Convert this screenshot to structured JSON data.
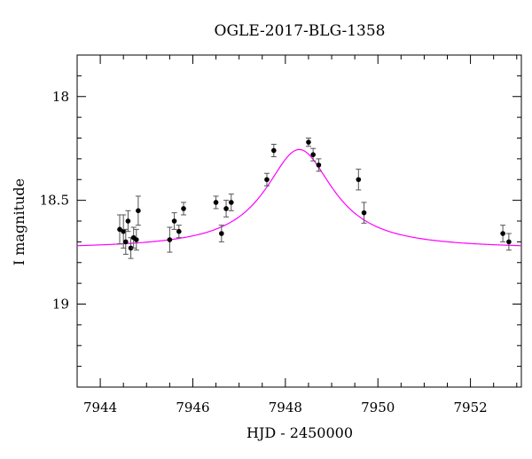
{
  "chart_data": {
    "type": "scatter",
    "title": "OGLE-2017-BLG-1358",
    "xlabel": "HJD - 2450000",
    "ylabel": "I magnitude",
    "xlim": [
      7943.5,
      7953.1
    ],
    "ylim": [
      19.4,
      17.8
    ],
    "y_inverted": true,
    "x_ticks": [
      7944,
      7946,
      7948,
      7950,
      7952
    ],
    "x_tick_labels": [
      "7944",
      "7946",
      "7948",
      "7950",
      "7952"
    ],
    "y_ticks": [
      18,
      18.5,
      19
    ],
    "y_tick_labels": [
      "18",
      "18.5",
      "19"
    ],
    "grid": false,
    "colors": {
      "points": "#000000",
      "model": "#ff00ff"
    },
    "model": {
      "type": "lorentzian",
      "t0": 7948.3,
      "baseline_mag": 18.735,
      "peak_mag": 18.255,
      "width": 0.9
    },
    "series": [
      {
        "points": [
          {
            "x": 7944.42,
            "y": 18.64,
            "err": 0.07
          },
          {
            "x": 7944.5,
            "y": 18.65,
            "err": 0.08
          },
          {
            "x": 7944.55,
            "y": 18.7,
            "err": 0.06
          },
          {
            "x": 7944.6,
            "y": 18.6,
            "err": 0.05
          },
          {
            "x": 7944.66,
            "y": 18.73,
            "err": 0.05
          },
          {
            "x": 7944.72,
            "y": 18.68,
            "err": 0.05
          },
          {
            "x": 7944.78,
            "y": 18.69,
            "err": 0.05
          },
          {
            "x": 7944.82,
            "y": 18.55,
            "err": 0.07
          },
          {
            "x": 7945.5,
            "y": 18.69,
            "err": 0.06
          },
          {
            "x": 7945.6,
            "y": 18.6,
            "err": 0.04
          },
          {
            "x": 7945.7,
            "y": 18.65,
            "err": 0.03
          },
          {
            "x": 7945.8,
            "y": 18.54,
            "err": 0.03
          },
          {
            "x": 7946.5,
            "y": 18.51,
            "err": 0.03
          },
          {
            "x": 7946.62,
            "y": 18.66,
            "err": 0.04
          },
          {
            "x": 7946.72,
            "y": 18.54,
            "err": 0.04
          },
          {
            "x": 7946.83,
            "y": 18.51,
            "err": 0.04
          },
          {
            "x": 7947.6,
            "y": 18.4,
            "err": 0.03
          },
          {
            "x": 7947.75,
            "y": 18.26,
            "err": 0.03
          },
          {
            "x": 7948.5,
            "y": 18.22,
            "err": 0.02
          },
          {
            "x": 7948.6,
            "y": 18.28,
            "err": 0.03
          },
          {
            "x": 7948.72,
            "y": 18.33,
            "err": 0.03
          },
          {
            "x": 7949.58,
            "y": 18.4,
            "err": 0.05
          },
          {
            "x": 7949.7,
            "y": 18.56,
            "err": 0.05
          },
          {
            "x": 7952.7,
            "y": 18.66,
            "err": 0.04
          },
          {
            "x": 7952.83,
            "y": 18.7,
            "err": 0.04
          }
        ]
      }
    ]
  }
}
